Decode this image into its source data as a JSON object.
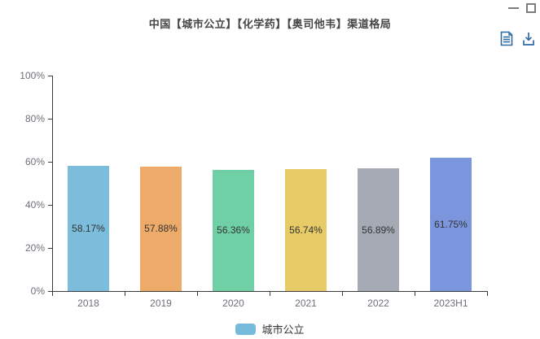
{
  "header": {
    "title": "中国【城市公立】【化学药】【奥司他韦】渠道格局"
  },
  "window_controls": {
    "color": "#7d7d7d"
  },
  "toolbox": {
    "icon_color": "#2e6ca6",
    "icons": [
      "data-view-icon",
      "download-icon"
    ]
  },
  "legend": {
    "items": [
      {
        "label": "城市公立",
        "color": "#76bbdc"
      }
    ]
  },
  "chart_data": {
    "type": "bar",
    "title": "中国【城市公立】【化学药】【奥司他韦】渠道格局",
    "categories": [
      "2018",
      "2019",
      "2020",
      "2021",
      "2022",
      "2023H1"
    ],
    "series": [
      {
        "name": "城市公立",
        "values": [
          58.17,
          57.88,
          56.36,
          56.74,
          56.89,
          61.75
        ]
      }
    ],
    "data_labels": [
      "58.17%",
      "57.88%",
      "56.36%",
      "56.74%",
      "56.89%",
      "61.75%"
    ],
    "bar_colors": [
      "#7cbddc",
      "#edaa68",
      "#6fd0a6",
      "#e7cb67",
      "#a5aab4",
      "#7b96dc"
    ],
    "ylim": [
      0,
      100
    ],
    "y_ticks": [
      0,
      20,
      40,
      60,
      80,
      100
    ],
    "y_tick_labels": [
      "0%",
      "20%",
      "40%",
      "60%",
      "80%",
      "100%"
    ],
    "xlabel": "",
    "ylabel": "",
    "grid": false,
    "legend_position": "bottom",
    "data_label_position": "inside-center",
    "axis_color": "#3b3b3b"
  }
}
